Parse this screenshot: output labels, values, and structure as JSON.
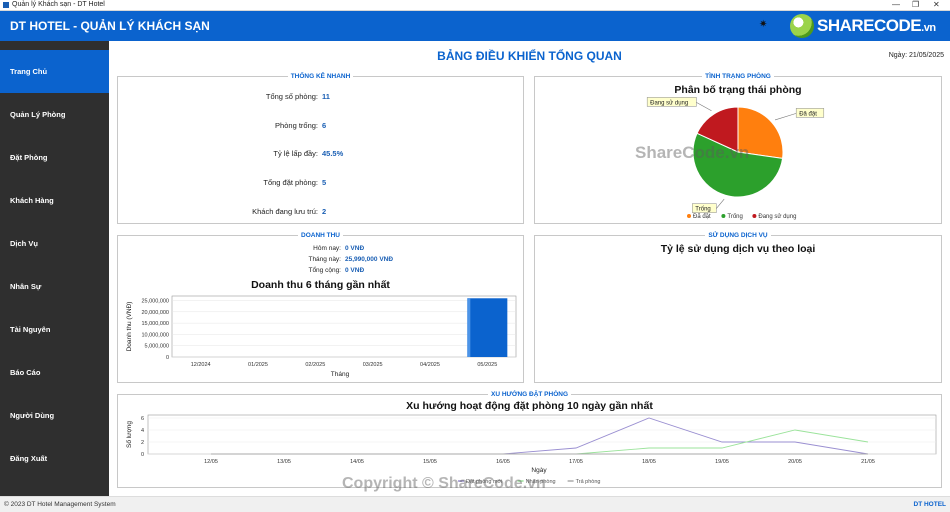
{
  "window": {
    "title": "Quản lý Khách sạn - DT Hotel",
    "controls": [
      "—",
      "❐",
      "✕"
    ]
  },
  "header": {
    "app_title": "DT HOTEL - QUẢN LÝ KHÁCH SẠN",
    "logo_text_share": "SHARE",
    "logo_text_code": "CODE",
    "logo_text_vn": ".vn",
    "star": "✷"
  },
  "sidebar": {
    "items": [
      {
        "label": "Trang Chủ"
      },
      {
        "label": "Quản Lý Phòng"
      },
      {
        "label": "Đặt Phòng"
      },
      {
        "label": "Khách Hàng"
      },
      {
        "label": "Dịch Vụ"
      },
      {
        "label": "Nhân Sự"
      },
      {
        "label": "Tài Nguyên"
      },
      {
        "label": "Báo Cáo"
      },
      {
        "label": "Người Dùng"
      },
      {
        "label": "Đăng Xuất"
      }
    ]
  },
  "main": {
    "title": "BẢNG ĐIỀU KHIỂN TỔNG QUAN",
    "date": "Ngày: 21/05/2025"
  },
  "quick_stats": {
    "title": "THỐNG KÊ NHANH",
    "rows": [
      {
        "label": "Tổng số phòng:",
        "value": "11"
      },
      {
        "label": "Phòng trống:",
        "value": "6"
      },
      {
        "label": "Tỷ lệ lấp đầy:",
        "value": "45.5%"
      },
      {
        "label": "Tổng đặt phòng:",
        "value": "5"
      },
      {
        "label": "Khách đang lưu trú:",
        "value": "2"
      }
    ]
  },
  "room_status": {
    "title": "TÌNH TRẠNG PHÒNG",
    "chart_title": "Phân bố trạng thái phòng",
    "legend": [
      "Đã đặt",
      "Trống",
      "Đang sử dụng"
    ],
    "colors": {
      "Đã đặt": "#ff7f0e",
      "Trống": "#2ca02c",
      "Đang sử dụng": "#c0191f"
    }
  },
  "revenue": {
    "title": "DOANH THU",
    "rows": [
      {
        "label": "Hôm nay:",
        "value": "0 VNĐ"
      },
      {
        "label": "Tháng này:",
        "value": "25,990,000 VNĐ"
      },
      {
        "label": "Tổng cộng:",
        "value": "0 VNĐ"
      }
    ],
    "chart_title": "Doanh thu 6 tháng gần nhất",
    "xlabel": "Tháng",
    "ylabel": "Doanh thu (VNĐ)",
    "yticks": [
      "0",
      "5,000,000",
      "10,000,000",
      "15,000,000",
      "20,000,000",
      "25,000,000"
    ]
  },
  "services": {
    "title": "SỬ DỤNG DỊCH VỤ",
    "chart_title": "Tỷ lệ sử dụng dịch vụ theo loại"
  },
  "booking_trend": {
    "title": "XU HƯỚNG ĐẶT PHÒNG",
    "chart_title": "Xu hướng hoạt động đặt phòng 10 ngày gần nhất",
    "xlabel": "Ngày",
    "ylabel": "Số lượng",
    "yticks": [
      "0",
      "2",
      "4",
      "6"
    ],
    "legend": [
      "Đặt phòng mới",
      "Nhận phòng",
      "Trả phòng"
    ]
  },
  "chart_data": [
    {
      "type": "pie",
      "title": "Phân bố trạng thái phòng",
      "categories": [
        "Đã đặt",
        "Trống",
        "Đang sử dụng"
      ],
      "values": [
        3,
        6,
        2
      ],
      "colors": [
        "#ff7f0e",
        "#2ca02c",
        "#c0191f"
      ],
      "legend": "bottom"
    },
    {
      "type": "bar",
      "title": "Doanh thu 6 tháng gần nhất",
      "categories": [
        "12/2024",
        "01/2025",
        "02/2025",
        "03/2025",
        "04/2025",
        "05/2025"
      ],
      "values": [
        0,
        0,
        0,
        0,
        0,
        25990000
      ],
      "xlabel": "Tháng",
      "ylabel": "Doanh thu (VNĐ)",
      "ylim": [
        0,
        27000000
      ],
      "color": "#0b63ce"
    },
    {
      "type": "line",
      "title": "Xu hướng hoạt động đặt phòng 10 ngày gần nhất",
      "x": [
        "12/05",
        "13/05",
        "14/05",
        "15/05",
        "16/05",
        "17/05",
        "18/05",
        "19/05",
        "20/05",
        "21/05"
      ],
      "series": [
        {
          "name": "Đặt phòng mới",
          "values": [
            0,
            0,
            0,
            0,
            0,
            1,
            6,
            2,
            2,
            0
          ],
          "color": "#9a8fd1"
        },
        {
          "name": "Nhận phòng",
          "values": [
            0,
            0,
            0,
            0,
            0,
            0,
            1,
            1,
            4,
            2
          ],
          "color": "#9be39b"
        },
        {
          "name": "Trả phòng",
          "values": [
            0,
            0,
            0,
            0,
            0,
            0,
            0,
            0,
            0,
            0
          ],
          "color": "#aaaaaa"
        }
      ],
      "xlabel": "Ngày",
      "ylabel": "Số lượng",
      "ylim": [
        0,
        6.5
      ],
      "legend": "bottom"
    }
  ],
  "statusbar": {
    "left": "© 2023 DT Hotel Management System",
    "right": "DT HOTEL"
  },
  "watermark": {
    "center": "ShareCode.vn",
    "bottom": "Copyright © ShareCode.vn"
  }
}
